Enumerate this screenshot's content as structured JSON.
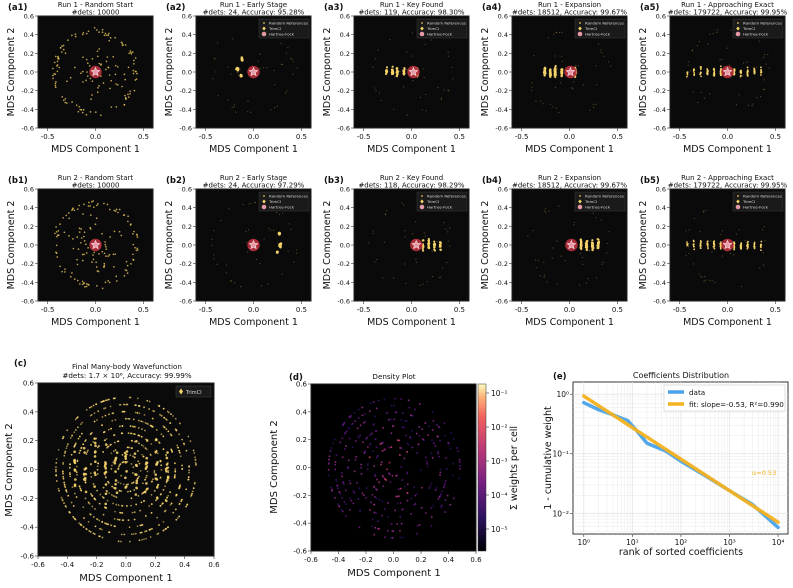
{
  "colors": {
    "panel_bg": "#0a0a0a",
    "scatter": "#e8c55a",
    "trimci": "#f5d36a",
    "hf_marker": "#e79aa6",
    "hf_halo": "#b3303d",
    "line_data": "#4aa3ea",
    "line_fit": "#f4b120",
    "density_low": "#3a0e63",
    "density_high": "#fcefb4"
  },
  "legend_labels": {
    "random": "Random References",
    "trimci": "TrimCI",
    "hf": "Hartree-Fock"
  },
  "axes_common": {
    "xlabel": "MDS Component 1",
    "ylabel": "MDS Component 2",
    "xlim": [
      -0.6,
      0.6
    ],
    "ylim": [
      -0.6,
      0.6
    ],
    "x_ticks": [
      "-0.5",
      "0.0",
      "0.5"
    ],
    "y_ticks": [
      "-0.6",
      "-0.4",
      "-0.2",
      "0.0",
      "0.2",
      "0.4",
      "0.6"
    ]
  },
  "grid_panels": [
    {
      "tag": "(a1)",
      "title1": "Run 1 - Random Start",
      "title2": "#dets: 10000",
      "kind": "random",
      "legend": false,
      "hf": [
        0.0,
        0.0
      ]
    },
    {
      "tag": "(a2)",
      "title1": "Run 1 - Early Stage",
      "title2": "#dets: 24, Accuracy: 95.28%",
      "kind": "early1",
      "legend": true,
      "hf": [
        0.0,
        0.0
      ]
    },
    {
      "tag": "(a3)",
      "title1": "Run 1 - Key Found",
      "title2": "#dets: 119, Accuracy: 98.30%",
      "kind": "key1",
      "legend": true,
      "hf": [
        0.02,
        0.0
      ]
    },
    {
      "tag": "(a4)",
      "title1": "Run 1 - Expansion",
      "title2": "#dets: 18512, Accuracy: 99.67%",
      "kind": "exp1",
      "legend": true,
      "hf": [
        0.01,
        0.0
      ]
    },
    {
      "tag": "(a5)",
      "title1": "Run 1 - Approaching Exact",
      "title2": "#dets: 179722, Accuracy: 99.95%",
      "kind": "approach",
      "legend": true,
      "hf": [
        0.0,
        0.0
      ]
    },
    {
      "tag": "(b1)",
      "title1": "Run 2 - Random Start",
      "title2": "#dets: 10000",
      "kind": "random",
      "legend": false,
      "hf": [
        0.0,
        0.0
      ]
    },
    {
      "tag": "(b2)",
      "title1": "Run 2 - Early Stage",
      "title2": "#dets: 24, Accuracy: 97.29%",
      "kind": "early2",
      "legend": true,
      "hf": [
        0.0,
        0.0
      ]
    },
    {
      "tag": "(b3)",
      "title1": "Run 2 - Key Found",
      "title2": "#dets: 118, Accuracy: 98.29%",
      "kind": "key2",
      "legend": true,
      "hf": [
        0.05,
        0.0
      ]
    },
    {
      "tag": "(b4)",
      "title1": "Run 2 - Expansion",
      "title2": "#dets: 18512, Accuracy: 99.67%",
      "kind": "exp2",
      "legend": true,
      "hf": [
        0.02,
        0.0
      ]
    },
    {
      "tag": "(b5)",
      "title1": "Run 2 - Approaching Exact",
      "title2": "#dets: 179722, Accuracy: 99.95%",
      "kind": "approach",
      "legend": true,
      "hf": [
        0.0,
        0.0
      ]
    }
  ],
  "panel_c": {
    "tag": "(c)",
    "title1": "Final Many-body Wavefunction",
    "title2": "#dets: 1.7 × 10⁶, Accuracy: 99.99%",
    "legend": "TrimCI",
    "x_ticks": [
      "-0.6",
      "-0.4",
      "-0.2",
      "0.0",
      "0.2",
      "0.4",
      "0.6"
    ],
    "y_ticks": [
      "-0.6",
      "-0.4",
      "-0.2",
      "0.0",
      "0.2",
      "0.4",
      "0.6"
    ]
  },
  "panel_d": {
    "tag": "(d)",
    "title": "Density Plot",
    "colorbar_label": "Σ weights per cell",
    "colorbar_ticks": [
      "10⁻¹",
      "10⁻²",
      "10⁻³",
      "10⁻⁴",
      "10⁻⁵"
    ],
    "x_ticks": [
      "-0.6",
      "-0.4",
      "-0.2",
      "0.0",
      "0.2",
      "0.4",
      "0.6"
    ],
    "y_ticks": [
      "-0.6",
      "-0.4",
      "-0.2",
      "0.0",
      "0.2",
      "0.4",
      "0.6"
    ]
  },
  "chart_data": {
    "type": "line",
    "tag": "(e)",
    "title": "Coefficients Distribution",
    "xlabel": "rank of sorted coefficients",
    "ylabel": "1 - cumulative weight",
    "x_scale": "log",
    "y_scale": "log",
    "xlim": [
      0.6,
      16000
    ],
    "ylim": [
      0.0045,
      1.6
    ],
    "x_tick_values": [
      1,
      10,
      100,
      1000,
      10000
    ],
    "x_tick_labels": [
      "10⁰",
      "10¹",
      "10²",
      "10³",
      "10⁴"
    ],
    "y_tick_values": [
      1,
      0.1,
      0.01
    ],
    "y_tick_labels": [
      "10⁰",
      "10⁻¹",
      "10⁻²"
    ],
    "grid": true,
    "legend_position": "top-right",
    "annotation": "α=0.53",
    "series": [
      {
        "name": "data",
        "x": [
          1,
          2,
          4,
          8,
          12,
          20,
          50,
          100,
          300,
          1000,
          3000,
          10000
        ],
        "y": [
          0.72,
          0.55,
          0.45,
          0.36,
          0.25,
          0.15,
          0.11,
          0.075,
          0.044,
          0.024,
          0.014,
          0.0058
        ]
      },
      {
        "name": "fit: slope=-0.53, R²=0.990",
        "x": [
          1,
          10000
        ],
        "y": [
          0.93,
          0.0071
        ]
      }
    ]
  }
}
